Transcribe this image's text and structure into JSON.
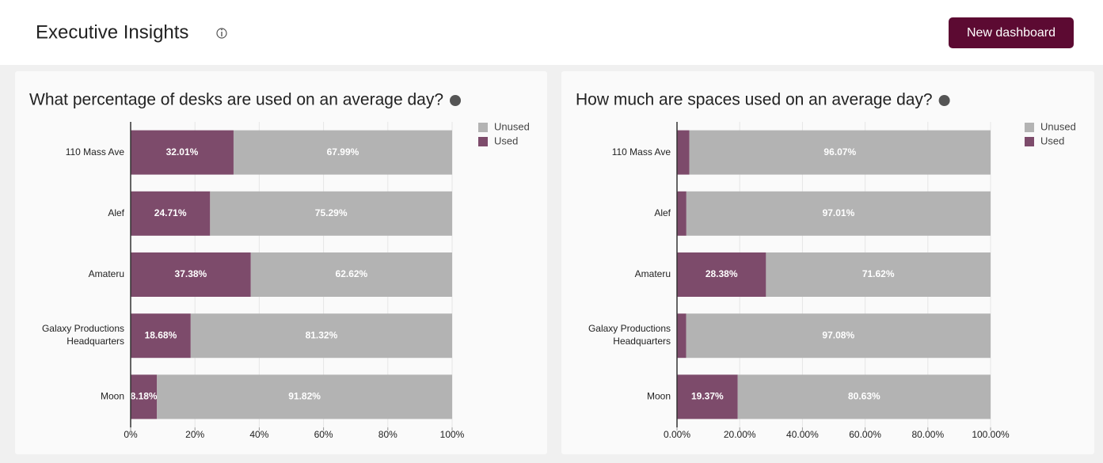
{
  "header": {
    "title": "Executive Insights",
    "button": "New dashboard"
  },
  "chart_data": [
    {
      "type": "bar",
      "orientation": "horizontal",
      "stacked": true,
      "title": "What percentage of desks are used on an average day?",
      "categories": [
        "110 Mass Ave",
        "Alef",
        "Amateru",
        "Galaxy Productions Headquarters",
        "Moon"
      ],
      "series": [
        {
          "name": "Used",
          "color": "#7d4b6b",
          "values": [
            32.01,
            24.71,
            37.38,
            18.68,
            8.18
          ],
          "value_labels": [
            "32.01%",
            "24.71%",
            "37.38%",
            "18.68%",
            "8.18%"
          ]
        },
        {
          "name": "Unused",
          "color": "#b3b3b3",
          "values": [
            67.99,
            75.29,
            62.62,
            81.32,
            91.82
          ],
          "value_labels": [
            "67.99%",
            "75.29%",
            "62.62%",
            "81.32%",
            "91.82%"
          ]
        }
      ],
      "xlim": [
        0,
        100
      ],
      "xticks": [
        {
          "value": 0,
          "label": "0%"
        },
        {
          "value": 20,
          "label": "20%"
        },
        {
          "value": 40,
          "label": "40%"
        },
        {
          "value": 60,
          "label": "60%"
        },
        {
          "value": 80,
          "label": "80%"
        },
        {
          "value": 100,
          "label": "100%"
        }
      ],
      "grid": true,
      "legend": "top right"
    },
    {
      "type": "bar",
      "orientation": "horizontal",
      "stacked": true,
      "title": "How much are spaces used on an average day?",
      "categories": [
        "110 Mass Ave",
        "Alef",
        "Amateru",
        "Galaxy Productions Headquarters",
        "Moon"
      ],
      "series": [
        {
          "name": "Used",
          "color": "#7d4b6b",
          "values": [
            3.93,
            2.99,
            28.38,
            2.92,
            19.37
          ],
          "value_labels": [
            null,
            null,
            "28.38%",
            null,
            "19.37%"
          ]
        },
        {
          "name": "Unused",
          "color": "#b3b3b3",
          "values": [
            96.07,
            97.01,
            71.62,
            97.08,
            80.63
          ],
          "value_labels": [
            "96.07%",
            "97.01%",
            "71.62%",
            "97.08%",
            "80.63%"
          ]
        }
      ],
      "xlim": [
        0,
        100
      ],
      "xticks": [
        {
          "value": 0,
          "label": "0.00%"
        },
        {
          "value": 20,
          "label": "20.00%"
        },
        {
          "value": 40,
          "label": "40.00%"
        },
        {
          "value": 60,
          "label": "60.00%"
        },
        {
          "value": 80,
          "label": "80.00%"
        },
        {
          "value": 100,
          "label": "100.00%"
        }
      ],
      "grid": true,
      "legend": "top right"
    }
  ]
}
